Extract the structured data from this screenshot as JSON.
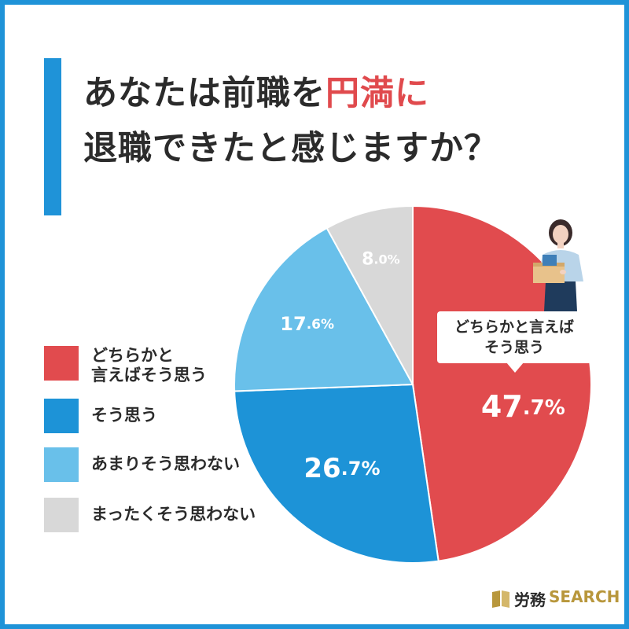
{
  "title": {
    "line1_prefix": "あなたは前職を",
    "line1_accent": "円満に",
    "line2": "退職できたと感じますか？"
  },
  "colors": {
    "frame": "#1f93d8",
    "title_accent": "#e04a4d",
    "text": "#2b2b2b"
  },
  "chart_data": {
    "type": "pie",
    "start_angle_deg": 0,
    "direction": "clockwise",
    "slices": [
      {
        "label": "どちらかと\n言えばそう思う",
        "value": 47.7,
        "display_int": "47",
        "display_dec": ".7%",
        "color": "#e14b4e"
      },
      {
        "label": "そう思う",
        "value": 26.7,
        "display_int": "26",
        "display_dec": ".7%",
        "color": "#1d93d7"
      },
      {
        "label": "あまりそう思わない",
        "value": 17.6,
        "display_int": "17",
        "display_dec": ".6%",
        "color": "#69c0ea"
      },
      {
        "label": "まったくそう思わない",
        "value": 8.0,
        "display_int": "8",
        "display_dec": ".0%",
        "color": "#d8d8d8"
      }
    ]
  },
  "callout": {
    "line1": "どちらかと言えば",
    "line2": "そう思う"
  },
  "logo": {
    "jp": "労務",
    "en": "SEARCH",
    "icon": "book-icon"
  },
  "illustration": {
    "icon": "person-carrying-box-icon"
  }
}
